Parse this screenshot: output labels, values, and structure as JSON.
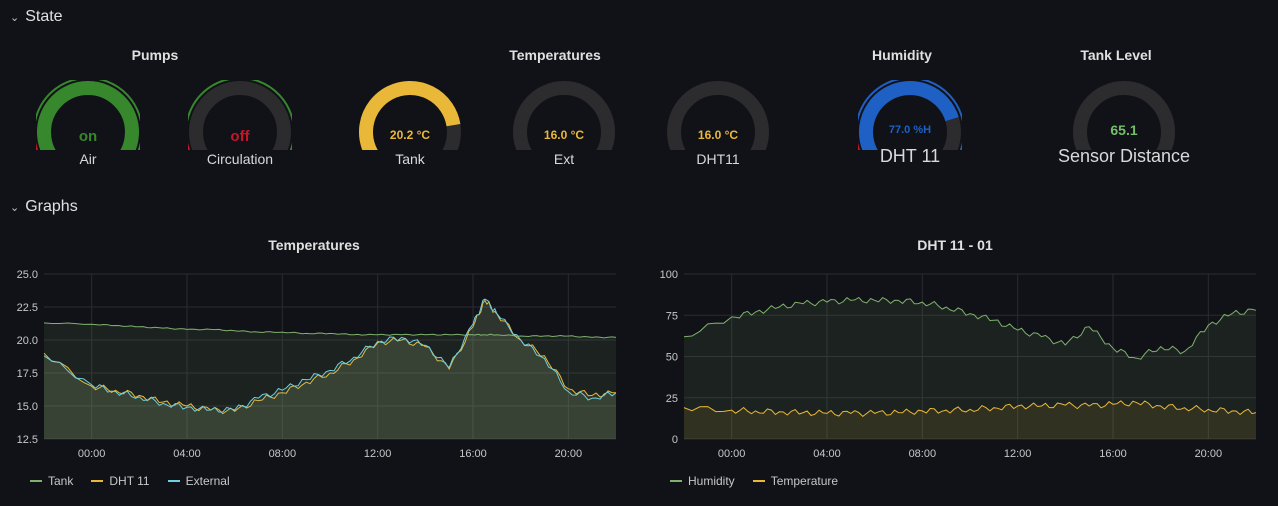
{
  "rows": {
    "state": "State",
    "graphs": "Graphs"
  },
  "panels": {
    "pumps": "Pumps",
    "temperatures": "Temperatures",
    "humidity": "Humidity",
    "tank_level": "Tank Level"
  },
  "gauges": [
    {
      "id": "air",
      "value": "on",
      "label": "Air",
      "color": "#37872d",
      "fill": 1.0,
      "value_color": "#37872d"
    },
    {
      "id": "circulation",
      "value": "off",
      "label": "Circulation",
      "color": "#c4162a",
      "fill": 0.0,
      "value_color": "#c4162a"
    },
    {
      "id": "tank",
      "value": "20.2 °C",
      "label": "Tank",
      "color": "#eab839",
      "fill": 0.8,
      "value_color": "#eab839"
    },
    {
      "id": "ext",
      "value": "16.0 °C",
      "label": "Ext",
      "color": "#eab839",
      "fill": 0.0,
      "value_color": "#eab839"
    },
    {
      "id": "dht11",
      "value": "16.0 °C",
      "label": "DHT11",
      "color": "#eab839",
      "fill": 0.0,
      "value_color": "#eab839"
    },
    {
      "id": "humidity",
      "value": "77.0 %H",
      "label": "DHT 11",
      "color": "#1f60c4",
      "fill": 0.77,
      "value_color": "#1f60c4"
    },
    {
      "id": "tank_level",
      "value": "65.1",
      "label": "Sensor Distance",
      "color": "#73bf69",
      "fill": 0.0,
      "value_color": "#73bf69"
    }
  ],
  "charts": {
    "left_title": "Temperatures",
    "right_title": "DHT 11 - 01"
  },
  "chart_data": [
    {
      "type": "line",
      "title": "Temperatures",
      "ylim": [
        12.5,
        25.0
      ],
      "yticks": [
        "25.0",
        "22.5",
        "20.0",
        "17.5",
        "15.0",
        "12.5"
      ],
      "xticks": [
        "00:00",
        "04:00",
        "08:00",
        "12:00",
        "16:00",
        "20:00"
      ],
      "x_hours": [
        -2,
        0,
        1,
        2,
        3,
        4,
        5,
        6,
        7,
        8,
        9,
        10,
        11,
        12,
        13,
        14,
        15,
        16,
        16.5,
        17,
        18,
        19,
        20,
        21,
        22
      ],
      "series": [
        {
          "name": "Tank",
          "color": "#7eb26d",
          "values": [
            21.3,
            21.2,
            21.1,
            21.0,
            20.9,
            20.8,
            20.8,
            20.7,
            20.6,
            20.6,
            20.5,
            20.5,
            20.4,
            20.4,
            20.4,
            20.4,
            20.4,
            20.4,
            20.4,
            20.4,
            20.3,
            20.3,
            20.3,
            20.2,
            20.2
          ]
        },
        {
          "name": "DHT 11",
          "color": "#eab839",
          "values": [
            19.0,
            16.5,
            16.2,
            15.8,
            15.3,
            15.0,
            14.7,
            14.6,
            15.4,
            16.0,
            16.8,
            17.5,
            18.5,
            19.8,
            20.0,
            19.5,
            17.8,
            21.0,
            23.0,
            22.0,
            20.0,
            18.8,
            16.3,
            15.8,
            16.0
          ]
        },
        {
          "name": "External",
          "color": "#6ed0e0",
          "values": [
            18.8,
            16.6,
            16.1,
            15.7,
            15.2,
            14.9,
            14.7,
            14.7,
            15.6,
            16.2,
            17.0,
            17.7,
            18.7,
            19.9,
            20.2,
            19.6,
            17.9,
            21.2,
            23.1,
            22.0,
            20.0,
            18.6,
            16.1,
            15.6,
            16.0
          ]
        }
      ]
    },
    {
      "type": "line",
      "title": "DHT 11 - 01",
      "ylim": [
        0,
        100
      ],
      "yticks": [
        "100",
        "75",
        "50",
        "25",
        "0"
      ],
      "xticks": [
        "00:00",
        "04:00",
        "08:00",
        "12:00",
        "16:00",
        "20:00"
      ],
      "x_hours": [
        -2,
        0,
        1,
        2,
        3,
        4,
        5,
        6,
        7,
        8,
        9,
        10,
        11,
        12,
        13,
        14,
        15,
        16,
        17,
        18,
        19,
        20,
        21,
        22
      ],
      "series": [
        {
          "name": "Humidity",
          "color": "#7eb26d",
          "values": [
            62,
            74,
            77,
            80,
            82,
            83,
            84,
            84,
            84,
            83,
            80,
            76,
            72,
            66,
            62,
            57,
            68,
            55,
            49,
            56,
            53,
            69,
            76,
            78
          ]
        },
        {
          "name": "Temperature",
          "color": "#eab839",
          "values": [
            19,
            17.5,
            17,
            16.5,
            16,
            15.5,
            15.5,
            15.5,
            16,
            17,
            17.5,
            18,
            19,
            20,
            20,
            20.5,
            20,
            21,
            22,
            20,
            19,
            18,
            17,
            16
          ]
        }
      ]
    }
  ]
}
